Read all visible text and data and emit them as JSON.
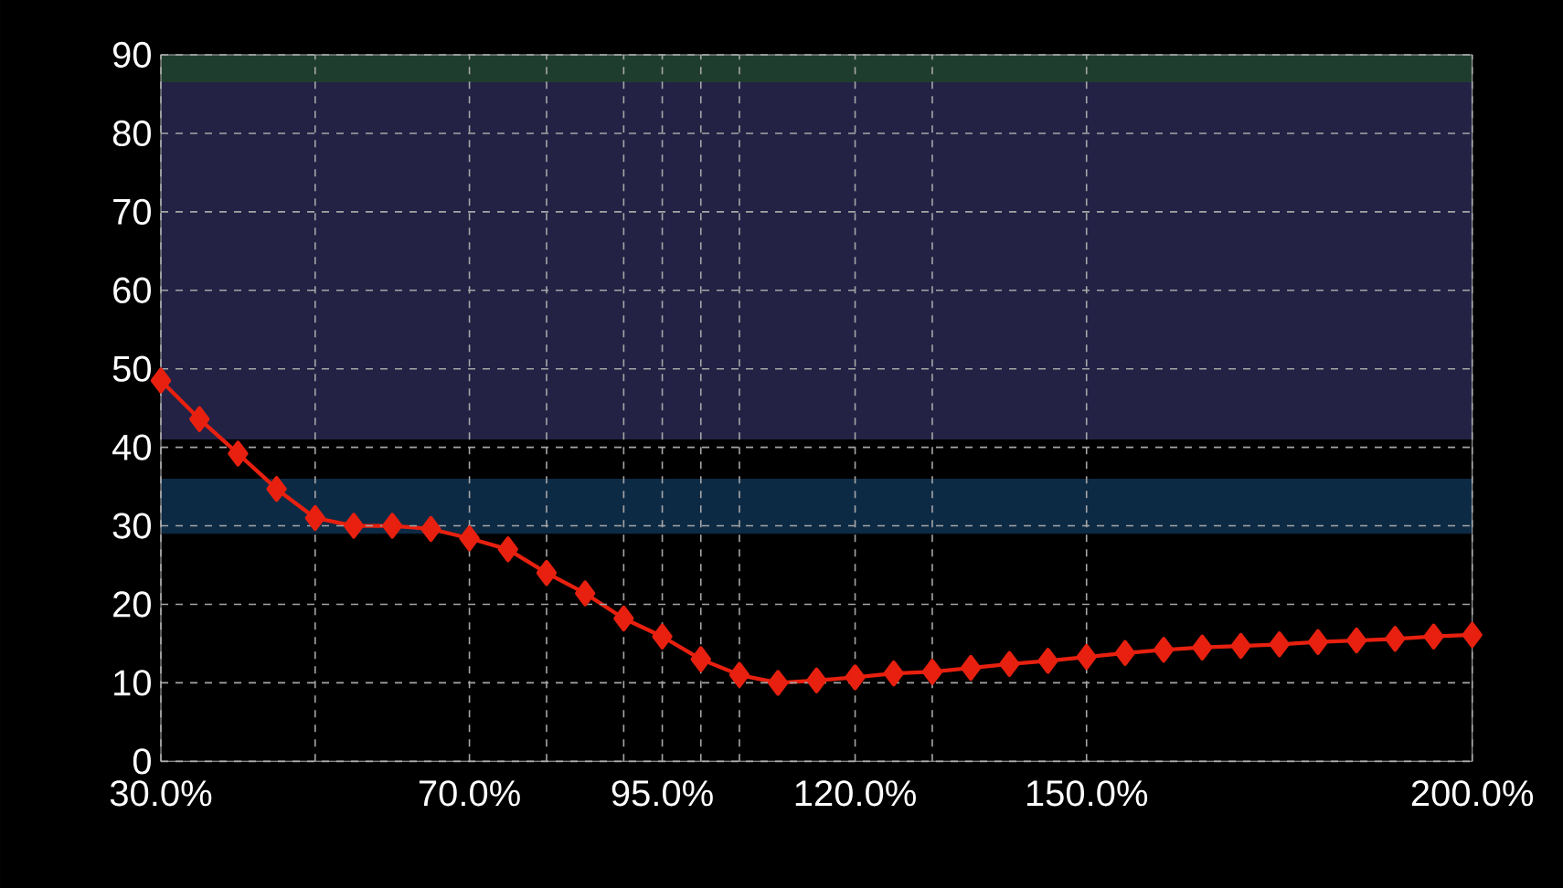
{
  "chart_data": {
    "type": "line",
    "x": [
      30,
      35,
      40,
      45,
      50,
      55,
      60,
      65,
      70,
      75,
      80,
      85,
      90,
      95,
      100,
      105,
      110,
      115,
      120,
      125,
      130,
      135,
      140,
      145,
      150,
      155,
      160,
      165,
      170,
      175,
      180,
      185,
      190,
      195,
      200
    ],
    "series": [
      {
        "color": "#e8200f",
        "values": [
          48.5,
          43.6,
          39.2,
          34.7,
          31,
          30,
          30,
          29.6,
          28.4,
          27,
          24,
          21.4,
          18.2,
          15.9,
          13,
          11,
          10,
          10.3,
          10.7,
          11.2,
          11.4,
          11.9,
          12.4,
          12.8,
          13.3,
          13.8,
          14.2,
          14.5,
          14.7,
          14.9,
          15.2,
          15.4,
          15.6,
          15.9,
          16.1
        ]
      }
    ],
    "xlim": [
      30,
      200
    ],
    "xticks": [
      {
        "value": 30,
        "label": "30.0%"
      },
      {
        "value": 50,
        "label": null
      },
      {
        "value": 70,
        "label": "70.0%"
      },
      {
        "value": 80,
        "label": null
      },
      {
        "value": 90,
        "label": null
      },
      {
        "value": 95,
        "label": "95.0%"
      },
      {
        "value": 100,
        "label": null
      },
      {
        "value": 105,
        "label": null
      },
      {
        "value": 120,
        "label": "120.0%"
      },
      {
        "value": 130,
        "label": null
      },
      {
        "value": 150,
        "label": "150.0%"
      },
      {
        "value": 200,
        "label": "200.0%"
      }
    ],
    "ylim": [
      0,
      90
    ],
    "yticks": [
      0,
      10,
      20,
      30,
      40,
      50,
      60,
      70,
      80,
      90
    ],
    "bands": [
      {
        "axis": "y",
        "from": 86.5,
        "to": 90,
        "color": "#1f3d2e"
      },
      {
        "axis": "y",
        "from": 41,
        "to": 86.5,
        "color": "#232245"
      },
      {
        "axis": "y",
        "from": 29,
        "to": 36,
        "color": "#0d2a45"
      }
    ],
    "grid": true,
    "marker": "diamond",
    "line_style": "solid"
  }
}
